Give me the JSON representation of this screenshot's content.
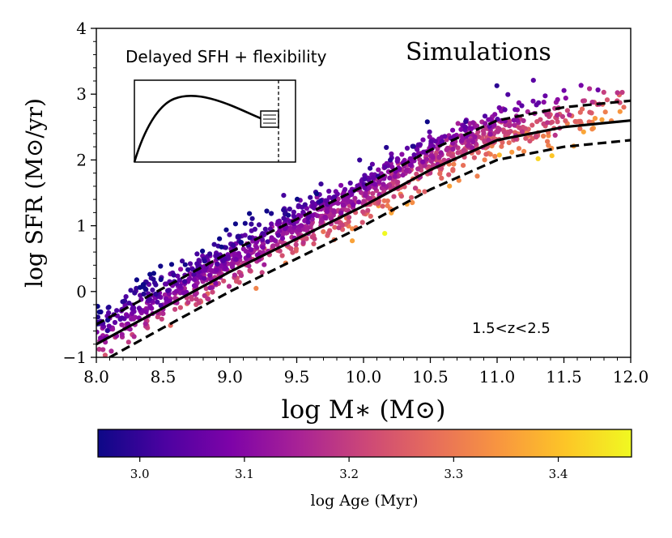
{
  "chart_data": {
    "type": "scatter",
    "title": "Simulations",
    "subtitle": "Delayed SFH + flexibility",
    "annotation": "1.5<z<2.5",
    "xlabel": "log M∗ (M⊙)",
    "ylabel": "log SFR (M⊙/yr)",
    "xlim": [
      8.0,
      12.0
    ],
    "ylim": [
      -1.0,
      4.0
    ],
    "xticks": [
      8.0,
      8.5,
      9.0,
      9.5,
      10.0,
      10.5,
      11.0,
      11.5,
      12.0
    ],
    "xtick_labels": [
      "8.0",
      "8.5",
      "9.0",
      "9.5",
      "10.0",
      "10.5",
      "11.0",
      "11.5",
      "12.0"
    ],
    "yticks": [
      -1,
      0,
      1,
      2,
      3,
      4
    ],
    "ytick_labels": [
      "−1",
      "0",
      "1",
      "2",
      "3",
      "4"
    ],
    "main_sequence": {
      "style": "solid",
      "x": [
        8.0,
        8.5,
        9.0,
        9.5,
        10.0,
        10.5,
        11.0,
        11.5,
        12.0
      ],
      "y": [
        -0.8,
        -0.25,
        0.3,
        0.8,
        1.3,
        1.85,
        2.3,
        2.5,
        2.6
      ]
    },
    "upper_bound": {
      "style": "dashed",
      "x": [
        8.0,
        8.5,
        9.0,
        9.5,
        10.0,
        10.5,
        11.0,
        11.5,
        12.0
      ],
      "y": [
        -0.5,
        0.05,
        0.6,
        1.1,
        1.6,
        2.15,
        2.6,
        2.8,
        2.9
      ]
    },
    "lower_bound": {
      "style": "dashed",
      "x": [
        8.1,
        8.5,
        9.0,
        9.5,
        10.0,
        10.5,
        11.0,
        11.5,
        12.0
      ],
      "y": [
        -1.0,
        -0.55,
        0.0,
        0.5,
        1.0,
        1.55,
        2.0,
        2.2,
        2.3
      ]
    },
    "scatter_model": {
      "n_points": 1400,
      "x_range": [
        8.0,
        11.95
      ],
      "relation": "follows main sequence with upward offset",
      "color_metric": "log Age (Myr)",
      "color_range": [
        2.96,
        3.47
      ]
    },
    "colorbar": {
      "label": "log Age (Myr)",
      "colormap": "plasma",
      "vmin": 2.96,
      "vmax": 3.47,
      "ticks": [
        3.0,
        3.1,
        3.2,
        3.3,
        3.4
      ],
      "tick_labels": [
        "3.0",
        "3.1",
        "3.2",
        "3.3",
        "3.4"
      ]
    },
    "inset": {
      "description": "SFH curve sketch",
      "curve_color": "#000000"
    }
  }
}
